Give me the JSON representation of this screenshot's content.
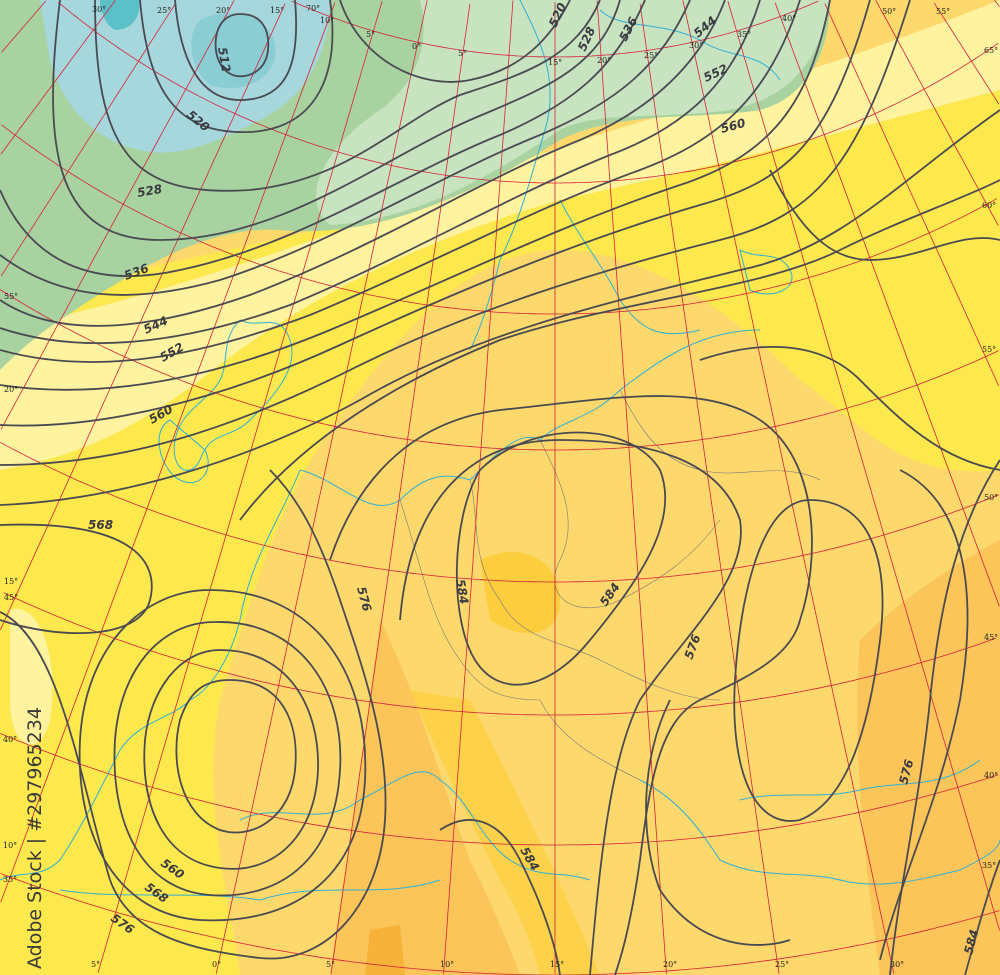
{
  "map": {
    "colors": {
      "blue_dark": "#5cc0c8",
      "blue": "#a6d7dc",
      "green": "#a8d3a0",
      "green_light": "#c7e3bf",
      "pale_yellow": "#fff3a0",
      "yellow": "#fde84e",
      "light_orange": "#fdd86c",
      "orange": "#fbc55a",
      "deep_orange": "#f7b23a",
      "contour": "#4a4a52",
      "graticule": "#d8203a",
      "coastline": "#2fb0d8"
    },
    "contour_labels": [
      {
        "text": "512"
      },
      {
        "text": "520"
      },
      {
        "text": "520"
      },
      {
        "text": "528"
      },
      {
        "text": "528"
      },
      {
        "text": "536"
      },
      {
        "text": "536"
      },
      {
        "text": "544"
      },
      {
        "text": "544"
      },
      {
        "text": "552"
      },
      {
        "text": "552"
      },
      {
        "text": "560"
      },
      {
        "text": "560"
      },
      {
        "text": "560"
      },
      {
        "text": "568"
      },
      {
        "text": "568"
      },
      {
        "text": "576"
      },
      {
        "text": "576"
      },
      {
        "text": "576"
      },
      {
        "text": "576"
      },
      {
        "text": "584"
      },
      {
        "text": "584"
      },
      {
        "text": "584"
      },
      {
        "text": "584"
      }
    ],
    "longitude_labels_top": [
      "30°",
      "25°",
      "20°",
      "15°",
      "70°",
      "10°",
      "5°",
      "0°",
      "5°",
      "15°",
      "20°",
      "25°",
      "30°",
      "35°",
      "40°",
      "50°",
      "55°"
    ],
    "longitude_labels_bottom": [
      "5°",
      "0°",
      "5°",
      "10°",
      "15°",
      "20°",
      "25°",
      "30°"
    ],
    "latitude_labels_right": [
      "65°",
      "60°",
      "55°",
      "50°",
      "45°",
      "40°",
      "35°"
    ],
    "latitude_labels_left": [
      "55°",
      "20°",
      "15°",
      "45°",
      "40°",
      "10°",
      "35°"
    ]
  },
  "watermark": "Adobe Stock | #297965234"
}
